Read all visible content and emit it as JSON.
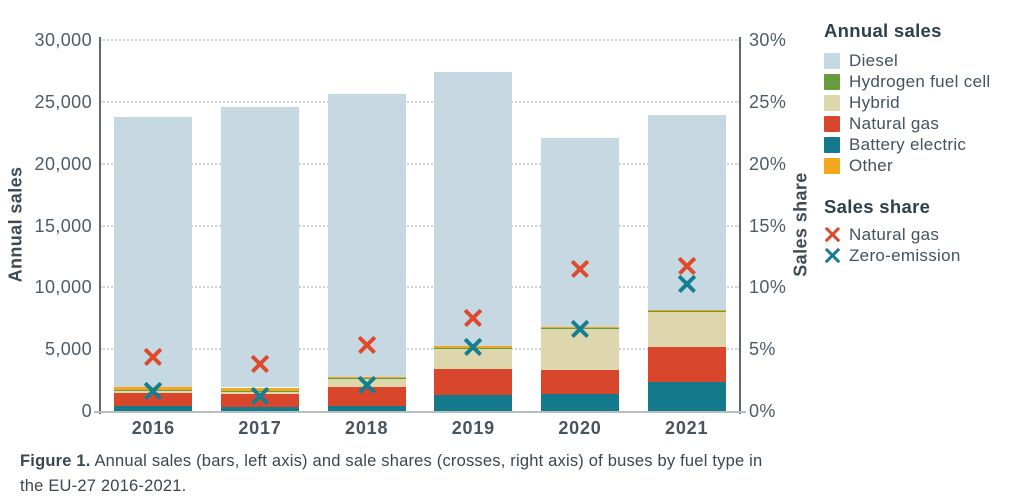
{
  "figure": {
    "caption_bold": "Figure 1.",
    "caption_text": " Annual sales (bars, left axis) and sale shares (crosses, right axis) of buses by fuel type in",
    "caption_line2": "the EU-27 2016-2021."
  },
  "axes": {
    "left_title": "Annual sales",
    "right_title": "Sales share",
    "left_ticks": [
      "0",
      "5,000",
      "10,000",
      "15,000",
      "20,000",
      "25,000",
      "30,000"
    ],
    "right_ticks": [
      "0%",
      "5%",
      "10%",
      "15%",
      "20%",
      "25%",
      "30%"
    ]
  },
  "legend": {
    "bars_title": "Annual sales",
    "bars_items": [
      {
        "label": "Diesel",
        "color": "#c6d8e2"
      },
      {
        "label": "Hydrogen fuel cell",
        "color": "#699b3f"
      },
      {
        "label": "Hybrid",
        "color": "#ded7ae"
      },
      {
        "label": "Natural gas",
        "color": "#d8472b"
      },
      {
        "label": "Battery electric",
        "color": "#14798b"
      },
      {
        "label": "Other",
        "color": "#f2a71c"
      }
    ],
    "share_title": "Sales share",
    "share_items": [
      {
        "label": "Natural gas",
        "color": "#de4a2c"
      },
      {
        "label": "Zero-emission",
        "color": "#157e91"
      }
    ]
  },
  "chart_data": {
    "type": "bar",
    "stacked": true,
    "overlay": "scatter-crosses",
    "categories": [
      "2016",
      "2017",
      "2018",
      "2019",
      "2020",
      "2021"
    ],
    "series": [
      {
        "name": "Battery electric",
        "color": "#14798b",
        "values": [
          420,
          350,
          400,
          1290,
          1370,
          2330
        ]
      },
      {
        "name": "Natural gas",
        "color": "#d8472b",
        "values": [
          1000,
          990,
          1560,
          2080,
          1940,
          2820
        ]
      },
      {
        "name": "Hybrid",
        "color": "#ded7ae",
        "values": [
          220,
          250,
          650,
          1700,
          3300,
          2880
        ]
      },
      {
        "name": "Hydrogen fuel cell",
        "color": "#699b3f",
        "values": [
          30,
          30,
          40,
          60,
          70,
          70
        ]
      },
      {
        "name": "Other",
        "color": "#f2a71c",
        "values": [
          270,
          280,
          110,
          100,
          100,
          100
        ]
      },
      {
        "name": "Diesel",
        "color": "#c6d8e2",
        "values": [
          21810,
          22700,
          22840,
          22170,
          15320,
          15700
        ]
      }
    ],
    "share_series": [
      {
        "name": "Natural gas",
        "color": "#de4a2c",
        "values": [
          4.4,
          3.8,
          5.3,
          7.5,
          11.5,
          11.7
        ]
      },
      {
        "name": "Zero-emission",
        "color": "#157e91",
        "values": [
          1.6,
          1.2,
          2.1,
          5.2,
          6.6,
          10.3
        ]
      }
    ],
    "left_axis": {
      "label": "Annual sales",
      "min": 0,
      "max": 30000,
      "step": 5000
    },
    "right_axis": {
      "label": "Sales share",
      "min": 0,
      "max": 30,
      "step": 5,
      "unit": "%"
    },
    "grid": "horizontal-dotted",
    "legend_position": "right"
  }
}
